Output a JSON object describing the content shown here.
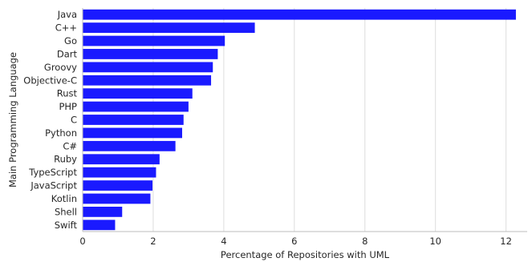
{
  "chart_data": {
    "type": "bar",
    "orientation": "horizontal",
    "categories": [
      "Java",
      "C++",
      "Go",
      "Dart",
      "Groovy",
      "Objective-C",
      "Rust",
      "PHP",
      "C",
      "Python",
      "C#",
      "Ruby",
      "TypeScript",
      "JavaScript",
      "Kotlin",
      "Shell",
      "Swift"
    ],
    "values": [
      12.28,
      4.88,
      4.03,
      3.83,
      3.69,
      3.64,
      3.11,
      3.0,
      2.86,
      2.82,
      2.63,
      2.18,
      2.08,
      1.98,
      1.92,
      1.12,
      0.92
    ],
    "xlabel": "Percentage of Repositories with UML",
    "ylabel": "Main Programming Language",
    "xlim": [
      0,
      12.6
    ],
    "xticks": [
      0,
      2,
      4,
      6,
      8,
      10,
      12
    ],
    "grid": "x",
    "bar_color": "#1a1aff",
    "grid_color": "#dddddd",
    "spine_color": "#bdbdbd"
  }
}
